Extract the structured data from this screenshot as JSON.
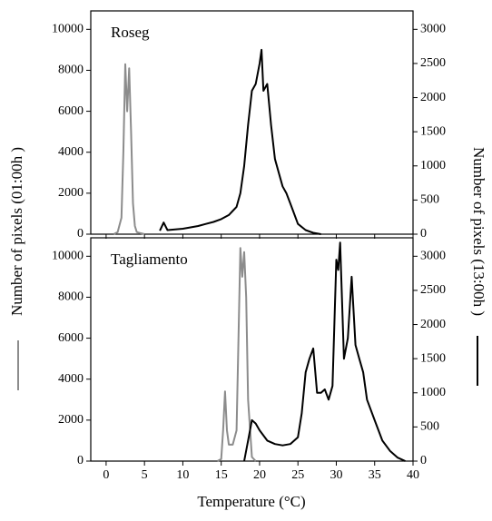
{
  "xlabel": "Temperature (°C)",
  "ylabel": "Number of pixels (01:00h )",
  "y2label": "Number of pixels (13:00h )",
  "chart_data": [
    {
      "type": "line",
      "title": "Roseg",
      "xlim": [
        -2,
        40
      ],
      "xticks": [
        0,
        5,
        10,
        15,
        20,
        25,
        30,
        35,
        40
      ],
      "ylim": [
        0,
        10900
      ],
      "yticks": [
        0,
        2000,
        4000,
        6000,
        8000,
        10000
      ],
      "y2lim": [
        0,
        3270
      ],
      "y2ticks": [
        0,
        500,
        1000,
        1500,
        2000,
        2500,
        3000
      ],
      "series": [
        {
          "color": "#8c8c8c",
          "x": [
            1,
            1.5,
            2,
            2.25,
            2.5,
            2.75,
            3,
            3.25,
            3.5,
            3.75,
            4,
            4.5,
            5
          ],
          "values": [
            0,
            100,
            800,
            4000,
            8300,
            6000,
            8100,
            5000,
            1500,
            400,
            100,
            50,
            0
          ]
        },
        {
          "color": "#000000",
          "axis": "y2",
          "x": [
            7,
            7.5,
            8,
            9,
            10,
            11,
            12,
            13,
            14,
            15,
            16,
            17,
            17.5,
            18,
            18.5,
            19,
            19.5,
            20,
            20.25,
            20.5,
            21,
            21.5,
            22,
            22.5,
            23,
            23.5,
            24,
            24.5,
            25,
            26,
            27,
            28
          ],
          "values": [
            50,
            170,
            60,
            70,
            80,
            100,
            120,
            150,
            180,
            220,
            280,
            400,
            600,
            1000,
            1600,
            2100,
            2200,
            2500,
            2700,
            2100,
            2200,
            1600,
            1100,
            900,
            700,
            600,
            450,
            300,
            150,
            60,
            20,
            0
          ]
        }
      ]
    },
    {
      "type": "line",
      "title": "Tagliamento",
      "xlim": [
        -2,
        40
      ],
      "xticks": [
        0,
        5,
        10,
        15,
        20,
        25,
        30,
        35,
        40
      ],
      "ylim": [
        0,
        10900
      ],
      "yticks": [
        0,
        2000,
        4000,
        6000,
        8000,
        10000
      ],
      "y2lim": [
        0,
        3270
      ],
      "y2ticks": [
        0,
        500,
        1000,
        1500,
        2000,
        2500,
        3000
      ],
      "series": [
        {
          "color": "#8c8c8c",
          "x": [
            14.5,
            15,
            15.25,
            15.5,
            15.75,
            16,
            16.5,
            17,
            17.5,
            17.75,
            18,
            18.25,
            18.5,
            19,
            19.5
          ],
          "values": [
            0,
            100,
            1500,
            3400,
            1500,
            800,
            800,
            1500,
            10400,
            9000,
            10200,
            8000,
            3000,
            200,
            0
          ]
        },
        {
          "color": "#000000",
          "axis": "y2",
          "x": [
            18,
            18.5,
            19,
            19.5,
            20,
            21,
            22,
            23,
            24,
            25,
            25.5,
            26,
            26.5,
            27,
            27.5,
            28,
            28.5,
            29,
            29.5,
            30,
            30.25,
            30.5,
            31,
            31.5,
            32,
            32.5,
            33,
            33.5,
            34,
            35,
            36,
            37,
            38,
            39
          ],
          "values": [
            0,
            300,
            600,
            550,
            450,
            300,
            250,
            230,
            250,
            350,
            700,
            1300,
            1500,
            1650,
            1000,
            1000,
            1050,
            900,
            1100,
            2950,
            2800,
            3200,
            1500,
            1800,
            2700,
            1700,
            1500,
            1300,
            900,
            600,
            300,
            150,
            50,
            0
          ]
        }
      ]
    }
  ]
}
